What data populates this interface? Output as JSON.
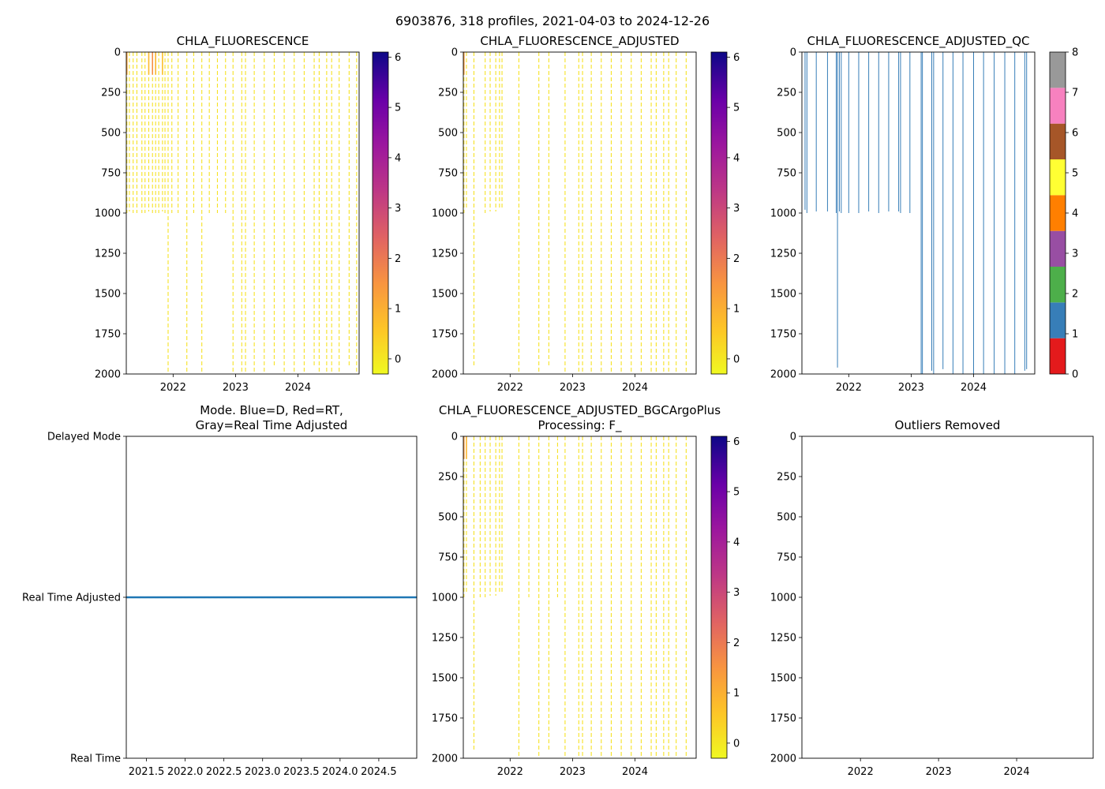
{
  "suptitle": "6903876, 318 profiles, 2021-04-03 to 2024-12-26",
  "chart_data": [
    {
      "id": "raw",
      "type": "heatmap",
      "title": "CHLA_FLUORESCENCE",
      "xlabel": "",
      "ylabel": "",
      "xlim": [
        2021.25,
        2024.98
      ],
      "ylim": [
        2000,
        0
      ],
      "x_ticks": [
        2022,
        2023,
        2024
      ],
      "x_tick_labels": [
        "2022",
        "2023",
        "2024"
      ],
      "y_ticks": [
        0,
        250,
        500,
        750,
        1000,
        1250,
        1500,
        1750,
        2000
      ],
      "colorbar": {
        "cmap": "plasma_r",
        "range": [
          -0.3,
          6.1
        ],
        "ticks": [
          0,
          1,
          2,
          3,
          4,
          5,
          6
        ]
      },
      "profiles": [
        {
          "t": 2021.26,
          "max_depth": 1000
        },
        {
          "t": 2021.3,
          "max_depth": 990
        },
        {
          "t": 2021.36,
          "max_depth": 1000
        },
        {
          "t": 2021.42,
          "max_depth": 1000
        },
        {
          "t": 2021.5,
          "max_depth": 1000
        },
        {
          "t": 2021.55,
          "max_depth": 1000
        },
        {
          "t": 2021.61,
          "max_depth": 990
        },
        {
          "t": 2021.67,
          "max_depth": 1000
        },
        {
          "t": 2021.72,
          "max_depth": 1000
        },
        {
          "t": 2021.77,
          "max_depth": 1000
        },
        {
          "t": 2021.83,
          "max_depth": 990
        },
        {
          "t": 2021.87,
          "max_depth": 1000
        },
        {
          "t": 2021.92,
          "max_depth": 2000
        },
        {
          "t": 2021.98,
          "max_depth": 1000
        },
        {
          "t": 2022.08,
          "max_depth": 1000
        },
        {
          "t": 2022.22,
          "max_depth": 2000
        },
        {
          "t": 2022.33,
          "max_depth": 1000
        },
        {
          "t": 2022.46,
          "max_depth": 2000
        },
        {
          "t": 2022.58,
          "max_depth": 1000
        },
        {
          "t": 2022.71,
          "max_depth": 1000
        },
        {
          "t": 2022.84,
          "max_depth": 1000
        },
        {
          "t": 2022.96,
          "max_depth": 2000
        },
        {
          "t": 2023.1,
          "max_depth": 2000
        },
        {
          "t": 2023.16,
          "max_depth": 2000
        },
        {
          "t": 2023.3,
          "max_depth": 2000
        },
        {
          "t": 2023.46,
          "max_depth": 2000
        },
        {
          "t": 2023.62,
          "max_depth": 1950
        },
        {
          "t": 2023.78,
          "max_depth": 2000
        },
        {
          "t": 2023.94,
          "max_depth": 2000
        },
        {
          "t": 2024.1,
          "max_depth": 2000
        },
        {
          "t": 2024.26,
          "max_depth": 1950
        },
        {
          "t": 2024.34,
          "max_depth": 2000
        },
        {
          "t": 2024.46,
          "max_depth": 2000
        },
        {
          "t": 2024.54,
          "max_depth": 2000
        },
        {
          "t": 2024.66,
          "max_depth": 2000
        },
        {
          "t": 2024.82,
          "max_depth": 1950
        },
        {
          "t": 2024.94,
          "max_depth": 2000
        }
      ],
      "surface_max_values": [
        {
          "t": 2021.26,
          "value": 1.2
        },
        {
          "t": 2021.61,
          "value": 0.8
        },
        {
          "t": 2021.67,
          "value": 1.6
        },
        {
          "t": 2021.72,
          "value": 0.9
        },
        {
          "t": 2021.83,
          "value": 0.7
        }
      ]
    },
    {
      "id": "adjusted",
      "type": "heatmap",
      "title": "CHLA_FLUORESCENCE_ADJUSTED",
      "xlabel": "",
      "ylabel": "",
      "xlim": [
        2021.25,
        2024.98
      ],
      "ylim": [
        2000,
        0
      ],
      "x_ticks": [
        2022,
        2023,
        2024
      ],
      "x_tick_labels": [
        "2022",
        "2023",
        "2024"
      ],
      "y_ticks": [
        0,
        250,
        500,
        750,
        1000,
        1250,
        1500,
        1750,
        2000
      ],
      "colorbar": {
        "cmap": "plasma_r",
        "range": [
          -0.3,
          6.1
        ],
        "ticks": [
          0,
          1,
          2,
          3,
          4,
          5,
          6
        ]
      },
      "profiles": [
        {
          "t": 2021.26,
          "max_depth": 1000
        },
        {
          "t": 2021.3,
          "max_depth": 980
        },
        {
          "t": 2021.42,
          "max_depth": 1950
        },
        {
          "t": 2021.6,
          "max_depth": 1000
        },
        {
          "t": 2021.68,
          "max_depth": 990
        },
        {
          "t": 2021.77,
          "max_depth": 990
        },
        {
          "t": 2021.83,
          "max_depth": 970
        },
        {
          "t": 2021.87,
          "max_depth": 970
        },
        {
          "t": 2022.14,
          "max_depth": 2000
        },
        {
          "t": 2022.46,
          "max_depth": 2000
        },
        {
          "t": 2022.62,
          "max_depth": 1950
        },
        {
          "t": 2022.88,
          "max_depth": 2000
        },
        {
          "t": 2023.1,
          "max_depth": 2000
        },
        {
          "t": 2023.16,
          "max_depth": 2000
        },
        {
          "t": 2023.3,
          "max_depth": 2000
        },
        {
          "t": 2023.46,
          "max_depth": 2000
        },
        {
          "t": 2023.62,
          "max_depth": 2000
        },
        {
          "t": 2023.78,
          "max_depth": 2000
        },
        {
          "t": 2023.94,
          "max_depth": 2000
        },
        {
          "t": 2024.1,
          "max_depth": 2000
        },
        {
          "t": 2024.26,
          "max_depth": 2000
        },
        {
          "t": 2024.34,
          "max_depth": 2000
        },
        {
          "t": 2024.46,
          "max_depth": 2000
        },
        {
          "t": 2024.54,
          "max_depth": 2000
        },
        {
          "t": 2024.66,
          "max_depth": 2000
        },
        {
          "t": 2024.82,
          "max_depth": 2000
        }
      ],
      "surface_max_values": [
        {
          "t": 2021.26,
          "value": 1.3
        }
      ]
    },
    {
      "id": "qc",
      "type": "heatmap",
      "title": "CHLA_FLUORESCENCE_ADJUSTED_QC",
      "xlabel": "",
      "ylabel": "",
      "xlim": [
        2021.25,
        2024.98
      ],
      "ylim": [
        2000,
        0
      ],
      "x_ticks": [
        2022,
        2023,
        2024
      ],
      "x_tick_labels": [
        "2022",
        "2023",
        "2024"
      ],
      "y_ticks": [
        0,
        250,
        500,
        750,
        1000,
        1250,
        1500,
        1750,
        2000
      ],
      "colorbar": {
        "cmap": "qc_flags",
        "range": [
          0,
          8
        ],
        "ticks": [
          0,
          1,
          2,
          3,
          4,
          5,
          6,
          7,
          8
        ],
        "colors": [
          "#e41a1c",
          "#377eb8",
          "#4daf4a",
          "#984ea3",
          "#ff7f00",
          "#ffff33",
          "#a65628",
          "#f781bf",
          "#999999"
        ]
      },
      "qc_flag_shown": 1,
      "profiles": [
        {
          "t": 2021.3,
          "max_depth": 980
        },
        {
          "t": 2021.33,
          "max_depth": 1000
        },
        {
          "t": 2021.48,
          "max_depth": 990
        },
        {
          "t": 2021.66,
          "max_depth": 990
        },
        {
          "t": 2021.8,
          "max_depth": 1000
        },
        {
          "t": 2021.82,
          "max_depth": 1960
        },
        {
          "t": 2021.85,
          "max_depth": 990
        },
        {
          "t": 2021.88,
          "max_depth": 1000
        },
        {
          "t": 2022.0,
          "max_depth": 1000
        },
        {
          "t": 2022.16,
          "max_depth": 1000
        },
        {
          "t": 2022.32,
          "max_depth": 990
        },
        {
          "t": 2022.48,
          "max_depth": 1000
        },
        {
          "t": 2022.64,
          "max_depth": 990
        },
        {
          "t": 2022.8,
          "max_depth": 990
        },
        {
          "t": 2022.83,
          "max_depth": 1000
        },
        {
          "t": 2022.98,
          "max_depth": 1000
        },
        {
          "t": 2023.16,
          "max_depth": 2000
        },
        {
          "t": 2023.18,
          "max_depth": 2000
        },
        {
          "t": 2023.33,
          "max_depth": 1980
        },
        {
          "t": 2023.36,
          "max_depth": 2000
        },
        {
          "t": 2023.51,
          "max_depth": 1970
        },
        {
          "t": 2023.67,
          "max_depth": 2000
        },
        {
          "t": 2023.83,
          "max_depth": 2000
        },
        {
          "t": 2024.0,
          "max_depth": 2000
        },
        {
          "t": 2024.16,
          "max_depth": 2000
        },
        {
          "t": 2024.33,
          "max_depth": 2000
        },
        {
          "t": 2024.5,
          "max_depth": 2000
        },
        {
          "t": 2024.66,
          "max_depth": 2000
        },
        {
          "t": 2024.82,
          "max_depth": 1980
        },
        {
          "t": 2024.85,
          "max_depth": 1970
        }
      ]
    },
    {
      "id": "mode",
      "type": "scatter",
      "title": "Mode. Blue=D, Red=RT,\nGray=Real Time Adjusted",
      "title_lines": [
        "Mode. Blue=D, Red=RT,",
        "Gray=Real Time Adjusted"
      ],
      "xlabel": "",
      "ylabel": "",
      "xlim": [
        2021.24,
        2024.99
      ],
      "y_categories": [
        "Real Time",
        "Real Time Adjusted",
        "Delayed Mode"
      ],
      "ylim": [
        0,
        2
      ],
      "x_ticks": [
        2021.5,
        2022.0,
        2022.5,
        2023.0,
        2023.5,
        2024.0,
        2024.5
      ],
      "x_tick_labels": [
        "2021.5",
        "2022.0",
        "2022.5",
        "2023.0",
        "2023.5",
        "2024.0",
        "2024.5"
      ],
      "series": [
        {
          "name": "Real Time Adjusted",
          "y": 1,
          "x_start": 2021.25,
          "x_end": 2024.98,
          "n": 318,
          "color": "#1f77b4"
        }
      ]
    },
    {
      "id": "bgc",
      "type": "heatmap",
      "title": "CHLA_FLUORESCENCE_ADJUSTED_BGCArgoPlus\nProcessing: F_",
      "title_lines": [
        "CHLA_FLUORESCENCE_ADJUSTED_BGCArgoPlus",
        "Processing: F_"
      ],
      "xlabel": "",
      "ylabel": "",
      "xlim": [
        2021.25,
        2024.98
      ],
      "ylim": [
        2000,
        0
      ],
      "x_ticks": [
        2022,
        2023,
        2024
      ],
      "x_tick_labels": [
        "2022",
        "2023",
        "2024"
      ],
      "y_ticks": [
        0,
        250,
        500,
        750,
        1000,
        1250,
        1500,
        1750,
        2000
      ],
      "colorbar": {
        "cmap": "plasma_r",
        "range": [
          -0.3,
          6.1
        ],
        "ticks": [
          0,
          1,
          2,
          3,
          4,
          5,
          6
        ]
      },
      "profiles": [
        {
          "t": 2021.26,
          "max_depth": 1000
        },
        {
          "t": 2021.3,
          "max_depth": 980
        },
        {
          "t": 2021.42,
          "max_depth": 1950
        },
        {
          "t": 2021.52,
          "max_depth": 1000
        },
        {
          "t": 2021.6,
          "max_depth": 1000
        },
        {
          "t": 2021.68,
          "max_depth": 990
        },
        {
          "t": 2021.77,
          "max_depth": 990
        },
        {
          "t": 2021.83,
          "max_depth": 970
        },
        {
          "t": 2021.87,
          "max_depth": 970
        },
        {
          "t": 2022.14,
          "max_depth": 2000
        },
        {
          "t": 2022.3,
          "max_depth": 1000
        },
        {
          "t": 2022.46,
          "max_depth": 2000
        },
        {
          "t": 2022.62,
          "max_depth": 1950
        },
        {
          "t": 2022.76,
          "max_depth": 1000
        },
        {
          "t": 2022.88,
          "max_depth": 2000
        },
        {
          "t": 2023.1,
          "max_depth": 2000
        },
        {
          "t": 2023.16,
          "max_depth": 2000
        },
        {
          "t": 2023.3,
          "max_depth": 2000
        },
        {
          "t": 2023.46,
          "max_depth": 2000
        },
        {
          "t": 2023.62,
          "max_depth": 2000
        },
        {
          "t": 2023.78,
          "max_depth": 2000
        },
        {
          "t": 2023.94,
          "max_depth": 2000
        },
        {
          "t": 2024.1,
          "max_depth": 2000
        },
        {
          "t": 2024.26,
          "max_depth": 2000
        },
        {
          "t": 2024.34,
          "max_depth": 2000
        },
        {
          "t": 2024.46,
          "max_depth": 2000
        },
        {
          "t": 2024.54,
          "max_depth": 2000
        },
        {
          "t": 2024.66,
          "max_depth": 2000
        },
        {
          "t": 2024.82,
          "max_depth": 2000
        }
      ],
      "surface_max_values": [
        {
          "t": 2021.26,
          "value": 1.4
        },
        {
          "t": 2021.3,
          "value": 0.9
        }
      ]
    },
    {
      "id": "outliers",
      "type": "heatmap",
      "title": "Outliers Removed",
      "xlabel": "",
      "ylabel": "",
      "xlim": [
        2021.25,
        2024.98
      ],
      "ylim": [
        2000,
        0
      ],
      "x_ticks": [
        2022,
        2023,
        2024
      ],
      "x_tick_labels": [
        "2022",
        "2023",
        "2024"
      ],
      "y_ticks": [
        0,
        250,
        500,
        750,
        1000,
        1250,
        1500,
        1750,
        2000
      ],
      "profiles": []
    }
  ]
}
